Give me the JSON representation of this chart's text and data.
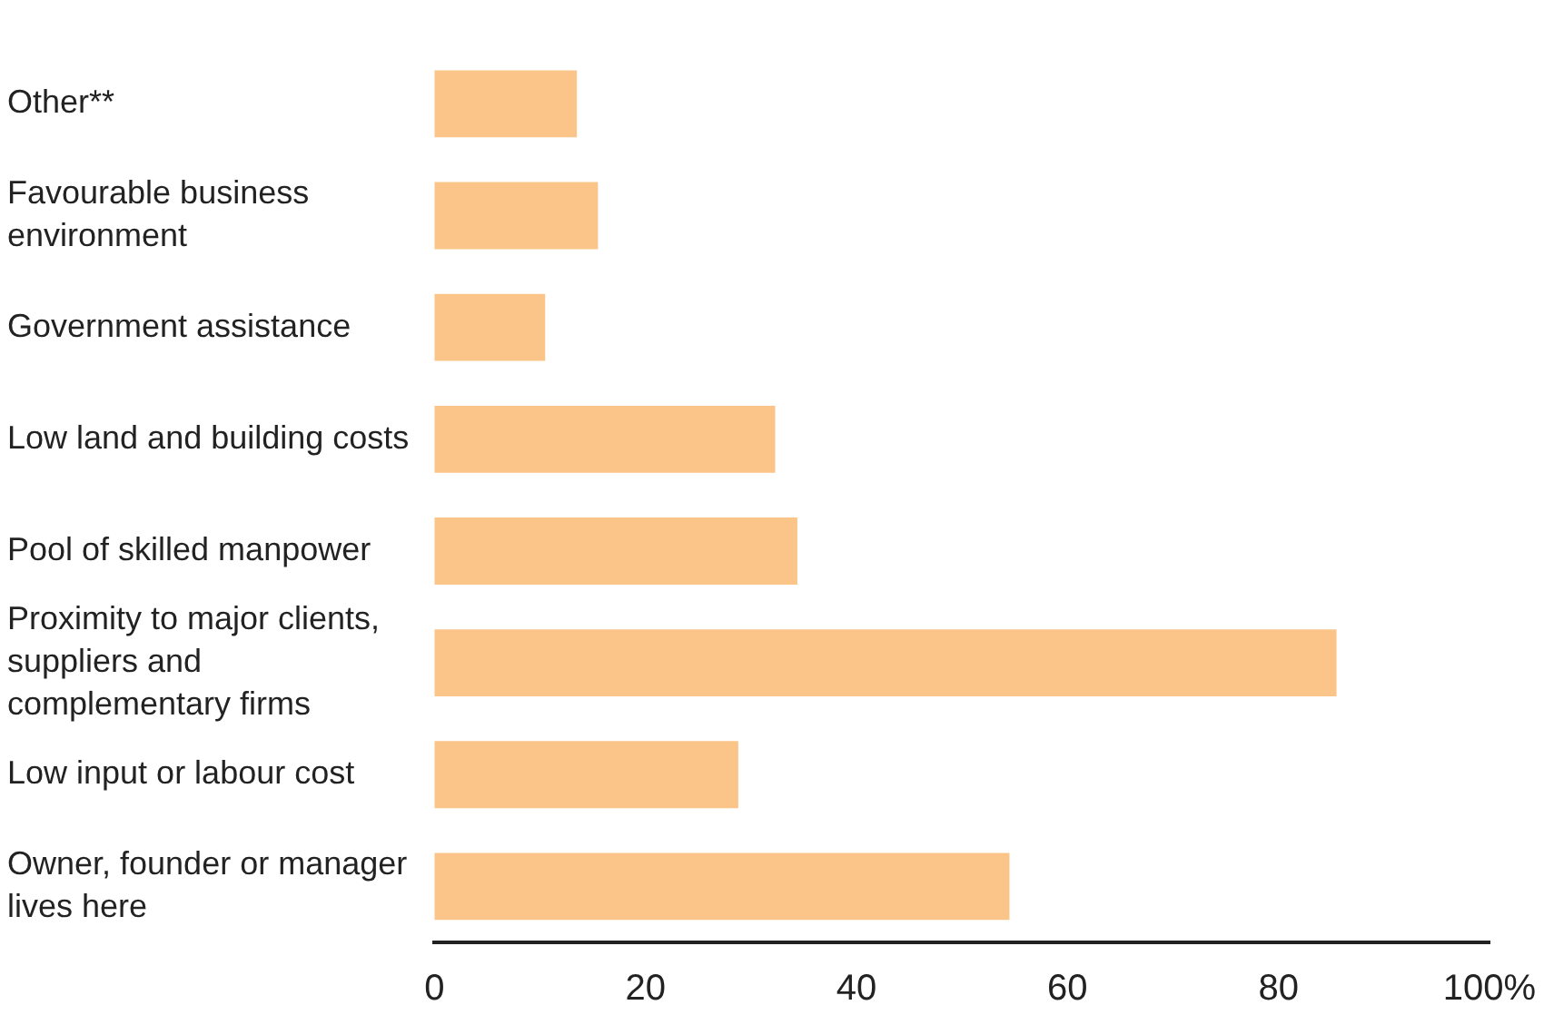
{
  "chart_data": {
    "type": "bar",
    "orientation": "horizontal",
    "categories": [
      "Other**",
      "Favourable business environment",
      "Government assistance",
      "Low land and building costs",
      "Pool of skilled manpower",
      "Proximity to major clients, suppliers and complementary firms",
      "Low input or labour cost",
      "Owner, founder or manager lives here"
    ],
    "values": [
      13.5,
      15.5,
      10.5,
      32.3,
      34.4,
      85.5,
      28.8,
      54.5
    ],
    "color": "#fbc589",
    "xlim": [
      0,
      100
    ],
    "xticks": [
      0,
      20,
      40,
      60,
      80,
      {
        "value": 100,
        "label": "100%"
      }
    ],
    "grid": false,
    "legend": false
  }
}
